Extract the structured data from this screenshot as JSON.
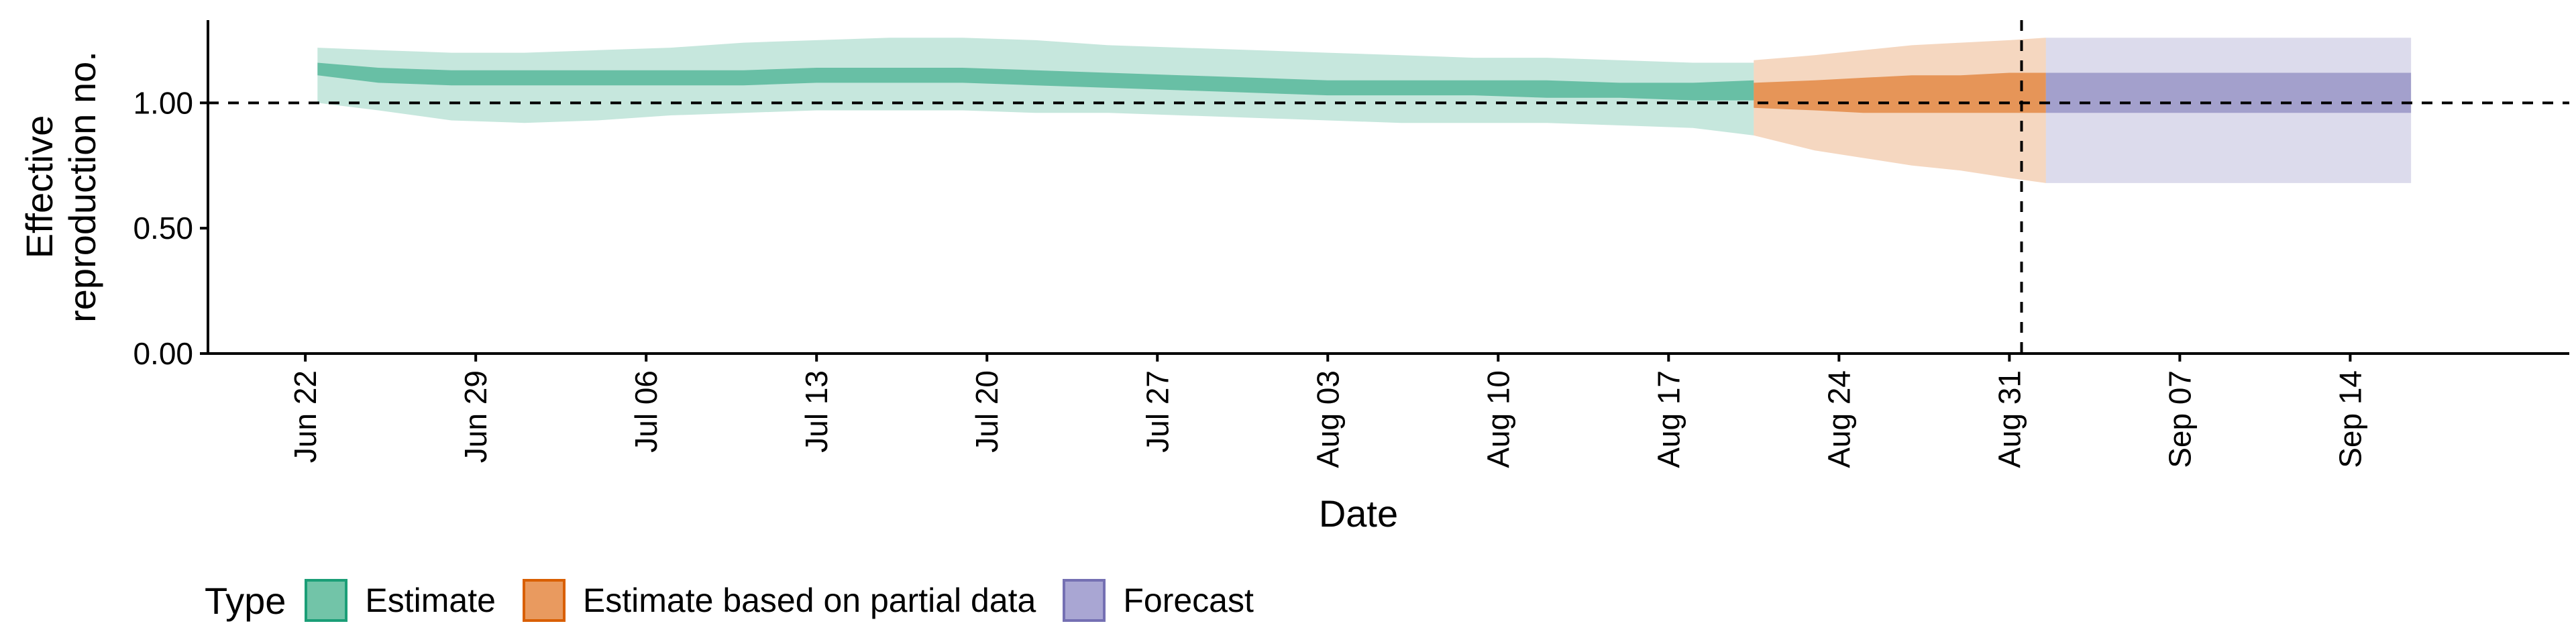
{
  "chart_data": {
    "type": "area",
    "ylabel_lines": [
      "Effective",
      "reproduction no."
    ],
    "xlabel": "Date",
    "ylim": [
      0,
      1.33
    ],
    "yticks": [
      0.0,
      0.5,
      1.0
    ],
    "ytick_labels": [
      "0.00",
      "0.50",
      "1.00"
    ],
    "x_start": "2020-06-22",
    "xticks": [
      "2020-06-22",
      "2020-06-29",
      "2020-07-06",
      "2020-07-13",
      "2020-07-20",
      "2020-07-27",
      "2020-08-03",
      "2020-08-10",
      "2020-08-17",
      "2020-08-24",
      "2020-08-31",
      "2020-09-07",
      "2020-09-14"
    ],
    "xtick_labels": [
      "Jun 22",
      "Jun 29",
      "Jul 06",
      "Jul 13",
      "Jul 20",
      "Jul 27",
      "Aug 03",
      "Aug 10",
      "Aug 17",
      "Aug 24",
      "Aug 31",
      "Sep 07",
      "Sep 14"
    ],
    "xlim": [
      "2020-06-18",
      "2020-09-23"
    ],
    "hline_y": 1.0,
    "vline_date": "2020-09-01",
    "series": [
      {
        "name": "Estimate",
        "color": "#1b9e77",
        "x": [
          "2020-06-23",
          "2020-06-25",
          "2020-06-28",
          "2020-07-01",
          "2020-07-04",
          "2020-07-07",
          "2020-07-10",
          "2020-07-13",
          "2020-07-16",
          "2020-07-19",
          "2020-07-22",
          "2020-07-25",
          "2020-07-28",
          "2020-07-31",
          "2020-08-03",
          "2020-08-06",
          "2020-08-09",
          "2020-08-12",
          "2020-08-15",
          "2020-08-18",
          "2020-08-20"
        ],
        "lower90": [
          1.0,
          0.97,
          0.93,
          0.92,
          0.93,
          0.95,
          0.96,
          0.97,
          0.97,
          0.97,
          0.96,
          0.96,
          0.95,
          0.94,
          0.93,
          0.92,
          0.92,
          0.92,
          0.91,
          0.9,
          0.87
        ],
        "upper90": [
          1.22,
          1.21,
          1.2,
          1.2,
          1.21,
          1.22,
          1.24,
          1.25,
          1.26,
          1.26,
          1.25,
          1.23,
          1.22,
          1.21,
          1.2,
          1.19,
          1.18,
          1.18,
          1.17,
          1.16,
          1.16
        ],
        "lower50": [
          1.11,
          1.08,
          1.07,
          1.07,
          1.07,
          1.07,
          1.07,
          1.08,
          1.08,
          1.08,
          1.07,
          1.06,
          1.05,
          1.04,
          1.03,
          1.03,
          1.03,
          1.02,
          1.02,
          1.01,
          1.01
        ],
        "upper50": [
          1.16,
          1.14,
          1.13,
          1.13,
          1.13,
          1.13,
          1.13,
          1.14,
          1.14,
          1.14,
          1.13,
          1.12,
          1.11,
          1.1,
          1.09,
          1.09,
          1.09,
          1.09,
          1.08,
          1.08,
          1.09
        ]
      },
      {
        "name": "Estimate based on partial data",
        "color": "#d95f02",
        "x": [
          "2020-08-21",
          "2020-08-23",
          "2020-08-25",
          "2020-08-27",
          "2020-08-29",
          "2020-08-31",
          "2020-09-01"
        ],
        "lower90": [
          0.87,
          0.81,
          0.78,
          0.75,
          0.73,
          0.7,
          0.68
        ],
        "upper90": [
          1.17,
          1.19,
          1.21,
          1.23,
          1.24,
          1.25,
          1.26
        ],
        "lower50": [
          0.98,
          0.97,
          0.96,
          0.96,
          0.96,
          0.96,
          0.96
        ],
        "upper50": [
          1.08,
          1.09,
          1.1,
          1.11,
          1.11,
          1.12,
          1.12
        ]
      },
      {
        "name": "Forecast",
        "color": "#7570b3",
        "x": [
          "2020-09-02",
          "2020-09-16"
        ],
        "lower90": [
          0.68,
          0.68
        ],
        "upper90": [
          1.26,
          1.26
        ],
        "lower50": [
          0.96,
          0.96
        ],
        "upper50": [
          1.12,
          1.12
        ]
      }
    ],
    "legend": {
      "title": "Type",
      "position": "bottom-left",
      "items": [
        {
          "label": "Estimate",
          "fill": "#72c4a8",
          "border": "#1b9e77"
        },
        {
          "label": "Estimate based on partial data",
          "fill": "#e99a5f",
          "border": "#d95f02"
        },
        {
          "label": "Forecast",
          "fill": "#a9a6d3",
          "border": "#7570b3"
        }
      ]
    }
  }
}
